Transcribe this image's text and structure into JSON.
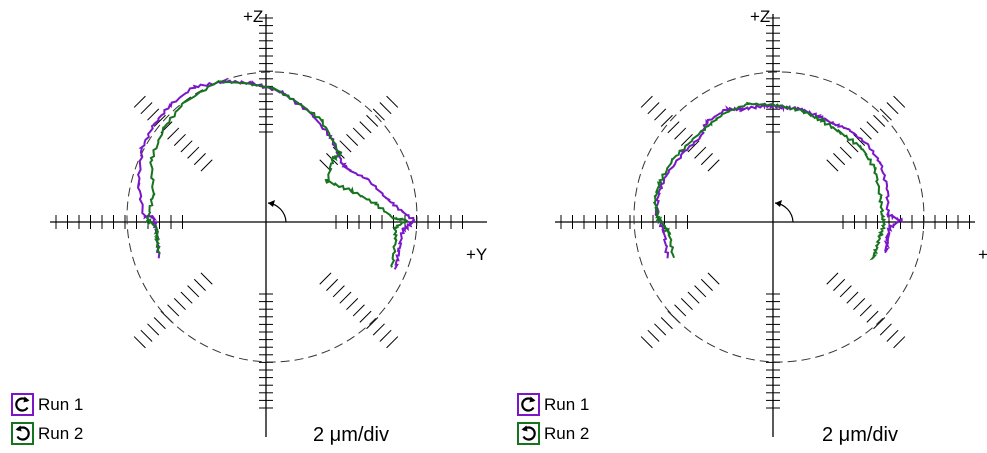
{
  "colors": {
    "run1": "#7b16c9",
    "run2": "#16731e",
    "axis": "#000000",
    "reference": "#333333"
  },
  "chart_data": [
    {
      "type": "polar-error-plot",
      "axis_labels": {
        "vertical": "+Z",
        "horizontal": "+Y"
      },
      "scale_label": "2 μm/div",
      "legend": [
        {
          "name": "Run 1",
          "icon": "clockwise-arrow-icon",
          "color": "#7b16c9"
        },
        {
          "name": "Run 2",
          "icon": "counterclockwise-arrow-icon",
          "color": "#16731e"
        }
      ],
      "series": [
        {
          "name": "Run 1",
          "points": [
            [
              -5.8,
              -1.9
            ],
            [
              -5.9,
              -0.5
            ],
            [
              -6.1,
              0.3
            ],
            [
              -6.6,
              0.3
            ],
            [
              -6.9,
              2.1
            ],
            [
              -6.7,
              4.0
            ],
            [
              -6.1,
              5.2
            ],
            [
              -5.2,
              6.3
            ],
            [
              -3.9,
              7.3
            ],
            [
              -2.2,
              7.6
            ],
            [
              -0.7,
              7.5
            ],
            [
              0.9,
              7.0
            ],
            [
              2.4,
              5.9
            ],
            [
              3.5,
              4.6
            ],
            [
              4.1,
              3.2
            ],
            [
              4.5,
              2.8
            ],
            [
              5.5,
              2.3
            ],
            [
              6.5,
              1.3
            ],
            [
              7.2,
              0.7
            ],
            [
              8.0,
              0.1
            ],
            [
              7.6,
              -0.3
            ],
            [
              7.4,
              -0.4
            ],
            [
              7.2,
              -1.5
            ],
            [
              7.0,
              -2.5
            ]
          ]
        },
        {
          "name": "Run 2",
          "points": [
            [
              -5.8,
              -1.7
            ],
            [
              -5.9,
              -0.9
            ],
            [
              -5.9,
              -0.3
            ],
            [
              -6.4,
              0.1
            ],
            [
              -6.1,
              1.5
            ],
            [
              -6.2,
              3.4
            ],
            [
              -5.5,
              5.1
            ],
            [
              -4.5,
              6.4
            ],
            [
              -2.6,
              7.6
            ],
            [
              -1.1,
              7.5
            ],
            [
              0.5,
              7.2
            ],
            [
              1.8,
              6.4
            ],
            [
              3.0,
              5.5
            ],
            [
              4.0,
              3.7
            ],
            [
              3.6,
              3.4
            ],
            [
              3.3,
              2.2
            ],
            [
              4.6,
              1.7
            ],
            [
              5.9,
              1.0
            ],
            [
              6.9,
              0.2
            ],
            [
              7.6,
              0.1
            ],
            [
              7.0,
              -0.3
            ],
            [
              7.0,
              -1.0
            ],
            [
              6.8,
              -2.5
            ]
          ]
        }
      ]
    },
    {
      "type": "polar-error-plot",
      "axis_labels": {
        "vertical": "+Z",
        "horizontal": "+"
      },
      "scale_label": "2 μm/div",
      "legend": [
        {
          "name": "Run 1",
          "icon": "clockwise-arrow-icon",
          "color": "#7b16c9"
        },
        {
          "name": "Run 2",
          "icon": "counterclockwise-arrow-icon",
          "color": "#16731e"
        }
      ],
      "series": [
        {
          "name": "Run 1",
          "points": [
            [
              -5.7,
              -1.9
            ],
            [
              -5.9,
              -0.5
            ],
            [
              -6.3,
              0.4
            ],
            [
              -6.2,
              1.5
            ],
            [
              -5.8,
              2.5
            ],
            [
              -4.8,
              3.8
            ],
            [
              -3.9,
              4.6
            ],
            [
              -3.6,
              5.4
            ],
            [
              -2.5,
              6.1
            ],
            [
              -1.6,
              6.1
            ],
            [
              -0.4,
              6.3
            ],
            [
              0.5,
              6.2
            ],
            [
              1.5,
              6.1
            ],
            [
              2.5,
              5.7
            ],
            [
              3.3,
              5.3
            ],
            [
              4.1,
              5.0
            ],
            [
              5.1,
              4.2
            ],
            [
              5.8,
              3.2
            ],
            [
              6.2,
              1.8
            ],
            [
              6.2,
              0.4
            ],
            [
              6.9,
              0.1
            ],
            [
              6.3,
              -0.3
            ],
            [
              6.2,
              -0.9
            ],
            [
              6.1,
              -1.6
            ]
          ]
        },
        {
          "name": "Run 2",
          "points": [
            [
              -5.4,
              -1.9
            ],
            [
              -5.6,
              -0.6
            ],
            [
              -5.8,
              -0.3
            ],
            [
              -6.2,
              0.2
            ],
            [
              -6.4,
              1.2
            ],
            [
              -6.1,
              2.2
            ],
            [
              -5.4,
              3.4
            ],
            [
              -4.3,
              4.5
            ],
            [
              -3.4,
              5.3
            ],
            [
              -2.6,
              5.9
            ],
            [
              -1.3,
              6.4
            ],
            [
              0.3,
              6.3
            ],
            [
              1.6,
              6.0
            ],
            [
              2.6,
              5.5
            ],
            [
              3.7,
              4.8
            ],
            [
              4.8,
              4.0
            ],
            [
              5.5,
              2.9
            ],
            [
              5.8,
              1.4
            ],
            [
              5.9,
              0.4
            ],
            [
              6.0,
              -0.2
            ],
            [
              5.8,
              -0.7
            ],
            [
              5.6,
              -1.4
            ],
            [
              5.4,
              -2.0
            ]
          ]
        }
      ]
    }
  ]
}
